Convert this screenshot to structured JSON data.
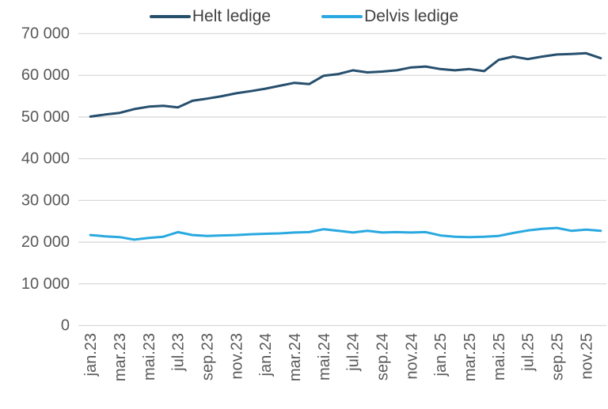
{
  "legend": {
    "items": [
      {
        "label": "Helt ledige",
        "color": "#264F6E"
      },
      {
        "label": "Delvis ledige",
        "color": "#29A9E0"
      }
    ]
  },
  "chart_data": {
    "type": "line",
    "title": "",
    "xlabel": "",
    "ylabel": "",
    "categories": [
      "jan.23",
      "feb.23",
      "mar.23",
      "apr.23",
      "mai.23",
      "jun.23",
      "jul.23",
      "aug.23",
      "sep.23",
      "okt.23",
      "nov.23",
      "des.23",
      "jan.24",
      "feb.24",
      "mar.24",
      "apr.24",
      "mai.24",
      "jun.24",
      "jul.24",
      "aug.24",
      "sep.24",
      "okt.24",
      "nov.24",
      "des.24",
      "jan.25",
      "feb.25",
      "mar.25",
      "apr.25",
      "mai.25",
      "jun.25",
      "jul.25",
      "aug.25",
      "sep.25",
      "okt.25",
      "nov.25",
      "des.25"
    ],
    "x_tick_labels": [
      "jan.23",
      "mar.23",
      "mai.23",
      "jul.23",
      "sep.23",
      "nov.23",
      "jan.24",
      "mar.24",
      "mai.24",
      "jul.24",
      "sep.24",
      "nov.24",
      "jan.25",
      "mar.25",
      "mai.25",
      "jul.25",
      "sep.25",
      "nov.25"
    ],
    "x_tick_every": 2,
    "series": [
      {
        "name": "Helt ledige",
        "color": "#264F6E",
        "values": [
          50100,
          50600,
          51000,
          51900,
          52500,
          52700,
          52300,
          53900,
          54400,
          55000,
          55700,
          56200,
          56800,
          57500,
          58200,
          57900,
          59900,
          60300,
          61200,
          60700,
          60900,
          61200,
          61900,
          62100,
          61500,
          61200,
          61500,
          61000,
          63700,
          64500,
          63900,
          64500,
          65000,
          65100,
          65300,
          64100
        ]
      },
      {
        "name": "Delvis ledige",
        "color": "#29A9E0",
        "values": [
          21700,
          21400,
          21200,
          20600,
          21000,
          21300,
          22400,
          21700,
          21500,
          21600,
          21700,
          21900,
          22000,
          22100,
          22300,
          22400,
          23100,
          22700,
          22300,
          22700,
          22300,
          22400,
          22300,
          22400,
          21600,
          21300,
          21200,
          21300,
          21500,
          22200,
          22800,
          23200,
          23400,
          22700,
          23000,
          22700
        ]
      }
    ],
    "ylim": [
      0,
      70000
    ],
    "y_ticks": [
      0,
      10000,
      20000,
      30000,
      40000,
      50000,
      60000,
      70000
    ],
    "y_tick_labels": [
      "0",
      "10 000",
      "20 000",
      "30 000",
      "40 000",
      "50 000",
      "60 000",
      "70 000"
    ],
    "grid": "horizontal",
    "legend_position": "top"
  },
  "colors": {
    "background": "#FFFFFF",
    "gridline": "#D9D9D9",
    "axis_text": "#595959",
    "legend_text": "#404040"
  }
}
